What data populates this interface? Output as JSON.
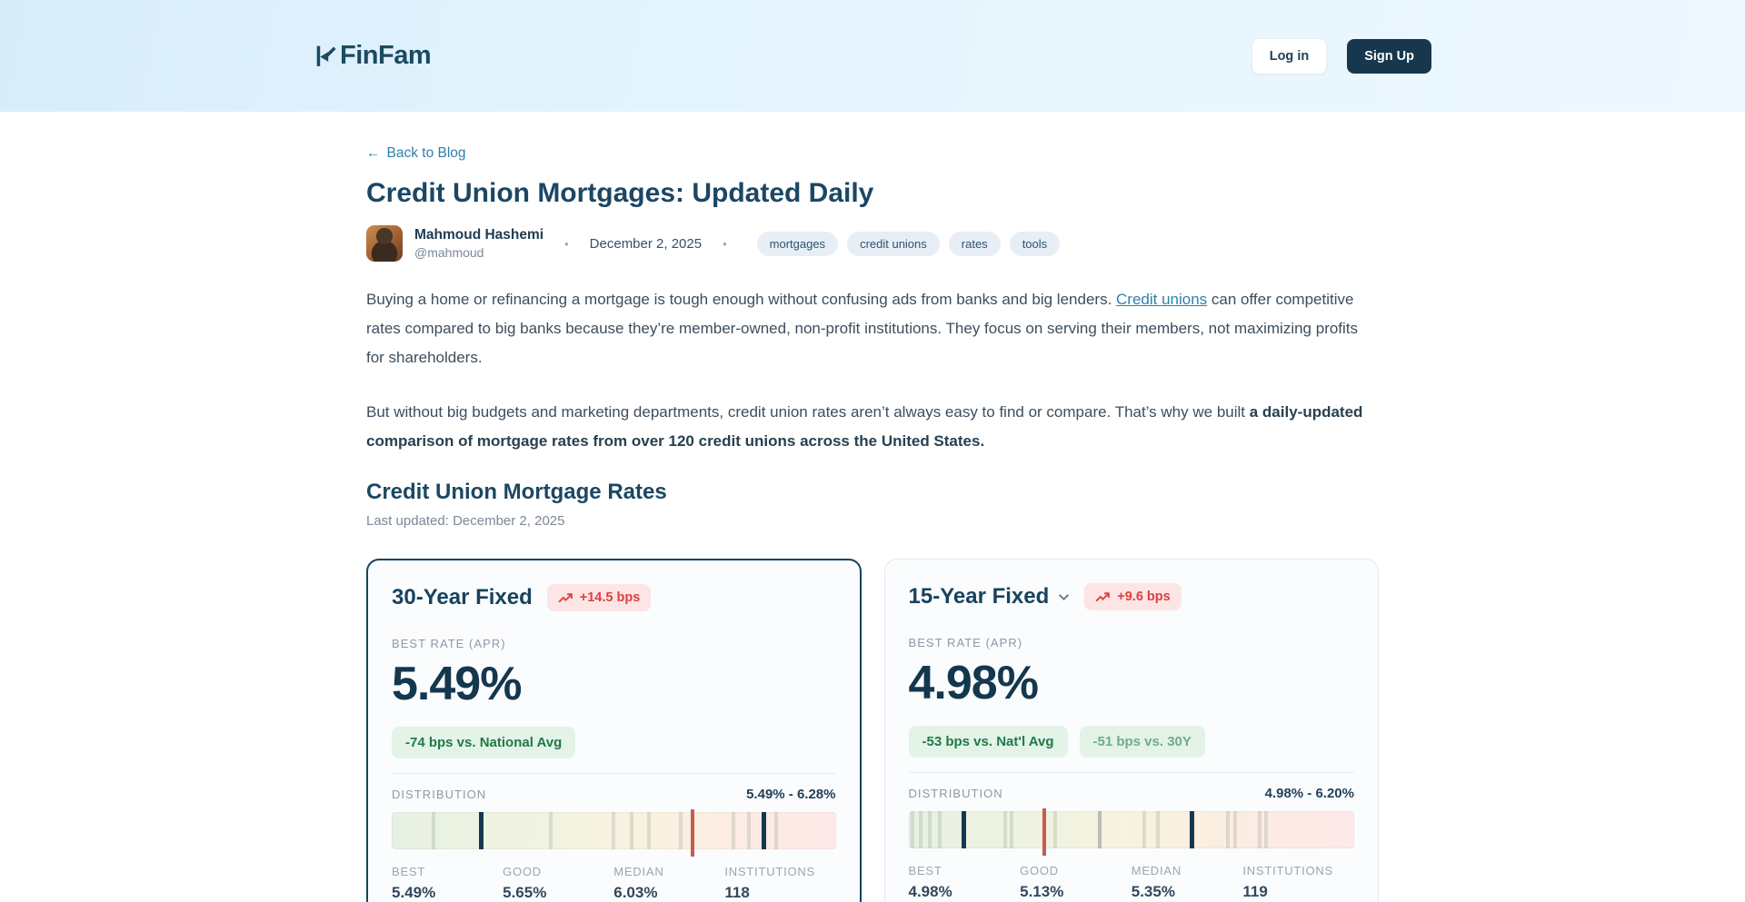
{
  "header": {
    "logo_text": "FinFam",
    "login_label": "Log in",
    "signup_label": "Sign Up"
  },
  "article": {
    "back_arrow": "←",
    "back_label": "Back to Blog",
    "title": "Credit Union Mortgages: Updated Daily",
    "author": {
      "name": "Mahmoud Hashemi",
      "handle": "@mahmoud"
    },
    "separator": "•",
    "date": "December 2, 2025",
    "tags": [
      "mortgages",
      "credit unions",
      "rates",
      "tools"
    ],
    "p1_pre": "Buying a home or refinancing a mortgage is tough enough without confusing ads from banks and big lenders. ",
    "p1_link": "Credit unions",
    "p1_post": " can offer competitive rates compared to big banks because they’re member-owned, non-profit institutions. They focus on serving their members, not maximizing profits for shareholders.",
    "p2_pre": "But without big budgets and marketing departments, credit union rates aren’t always easy to find or compare. That’s why we built ",
    "p2_bold": "a daily-updated comparison of mortgage rates from over 120 credit unions across the United States.",
    "section_heading": "Credit Union Mortgage Rates",
    "last_updated": "Last updated: December 2, 2025"
  },
  "colors": {
    "accent_navy": "#16374e",
    "link_blue": "#2e81ab",
    "badge_red": "#dd4040",
    "badge_red_bg": "#fde5e5",
    "pill_green": "#217a45",
    "pill_green_bg": "#e3f3e8",
    "header_blue_bg": "#e1f3fd"
  },
  "cards": [
    {
      "title": "30-Year Fixed",
      "trend_badge": "+14.5 bps",
      "best_rate_label": "BEST RATE (APR)",
      "best_rate": "5.49%",
      "pill_primary": "-74 bps vs. National Avg",
      "pill_secondary": "",
      "distribution_label": "DISTRIBUTION",
      "range": "5.49% - 6.28%",
      "ticks": [
        {
          "p": 9.5,
          "t": "light"
        },
        {
          "p": 20.0,
          "t": "dark"
        },
        {
          "p": 35.8,
          "t": "light"
        },
        {
          "p": 50.0,
          "t": "light"
        },
        {
          "p": 54.0,
          "t": "light"
        },
        {
          "p": 58.0,
          "t": "light"
        },
        {
          "p": 65.0,
          "t": "light"
        },
        {
          "p": 67.7,
          "t": "red"
        },
        {
          "p": 77.0,
          "t": "light"
        },
        {
          "p": 80.5,
          "t": "light"
        },
        {
          "p": 83.7,
          "t": "dark"
        },
        {
          "p": 86.5,
          "t": "light"
        }
      ],
      "stats": [
        {
          "label": "BEST",
          "value": "5.49%"
        },
        {
          "label": "GOOD",
          "value": "5.65%"
        },
        {
          "label": "MEDIAN",
          "value": "6.03%"
        },
        {
          "label": "INSTITUTIONS",
          "value": "118"
        }
      ]
    },
    {
      "title": "15-Year Fixed",
      "trend_badge": "+9.6 bps",
      "best_rate_label": "BEST RATE (APR)",
      "best_rate": "4.98%",
      "pill_primary": "-53 bps vs. Nat'l Avg",
      "pill_secondary": "-51 bps vs. 30Y",
      "distribution_label": "DISTRIBUTION",
      "range": "4.98% - 6.20%",
      "ticks": [
        {
          "p": 1.0,
          "t": "light"
        },
        {
          "p": 2.8,
          "t": "light"
        },
        {
          "p": 4.8,
          "t": "light"
        },
        {
          "p": 7.0,
          "t": "light"
        },
        {
          "p": 12.3,
          "t": "dark"
        },
        {
          "p": 21.8,
          "t": "light"
        },
        {
          "p": 23.2,
          "t": "light"
        },
        {
          "p": 30.5,
          "t": "red"
        },
        {
          "p": 33.0,
          "t": "light"
        },
        {
          "p": 43.0,
          "t": "mid"
        },
        {
          "p": 52.9,
          "t": "light"
        },
        {
          "p": 56.0,
          "t": "light"
        },
        {
          "p": 63.5,
          "t": "dark"
        },
        {
          "p": 71.7,
          "t": "light"
        },
        {
          "p": 73.2,
          "t": "light"
        },
        {
          "p": 78.8,
          "t": "light"
        },
        {
          "p": 80.3,
          "t": "light"
        }
      ],
      "stats": [
        {
          "label": "BEST",
          "value": "4.98%"
        },
        {
          "label": "GOOD",
          "value": "5.13%"
        },
        {
          "label": "MEDIAN",
          "value": "5.35%"
        },
        {
          "label": "INSTITUTIONS",
          "value": "119"
        }
      ]
    }
  ]
}
